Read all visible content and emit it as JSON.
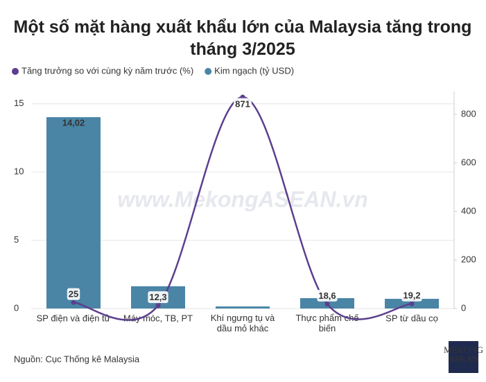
{
  "chart_data": {
    "type": "combo",
    "title": "Một số mặt hàng xuất khẩu lớn của Malaysia tăng trong tháng 3/2025",
    "categories": [
      "SP điện và điện tử",
      "Máy móc, TB, PT",
      "Khí ngưng tụ và\ndầu mỏ khác",
      "Thực phẩm chế\nbiến",
      "SP từ dầu cọ"
    ],
    "series": [
      {
        "name": "Tăng trưởng so với cùng kỳ năm trước (%)",
        "type": "line",
        "axis": "y2",
        "color": "#5b3f8e",
        "values": [
          25,
          12.3,
          871,
          18.6,
          19.2
        ],
        "value_labels": [
          "25",
          "12,3",
          "871",
          "18,6",
          "19,2"
        ]
      },
      {
        "name": "Kim ngạch (tỷ USD)",
        "type": "bar",
        "color": "#4a85a6",
        "values": [
          14.02,
          1.63,
          0.15,
          0.76,
          0.71
        ],
        "value_labels": [
          "14,02",
          null,
          null,
          null,
          null
        ]
      }
    ],
    "ylim": [
      0,
      15.9
    ],
    "yticks": [
      0,
      5,
      10,
      15
    ],
    "y2lim": [
      0,
      894
    ],
    "y2ticks": [
      0,
      200,
      400,
      600,
      800
    ],
    "grid": true,
    "watermark": "www.MekongASEAN.vn",
    "source": "Nguồn: Cục Thống kê Malaysia",
    "logo": [
      "MEKONG",
      "ASEAN"
    ]
  }
}
